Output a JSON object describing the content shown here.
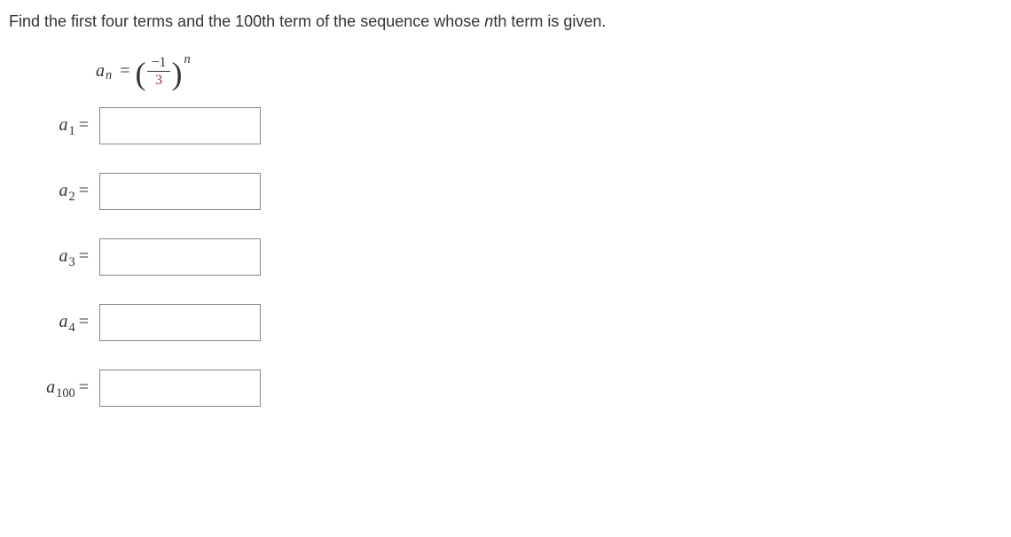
{
  "prompt": {
    "prefix": "Find the first four terms and the 100th term of the sequence whose ",
    "italic": "n",
    "suffix": "th term is given."
  },
  "formula": {
    "symbol": "a",
    "sub": "n",
    "eq": "=",
    "lparen": "(",
    "numerator": "−1",
    "denominator": "3",
    "rparen": ")",
    "exponent": "n"
  },
  "answers": [
    {
      "symbol": "a",
      "index": "1",
      "eq": "=",
      "value": ""
    },
    {
      "symbol": "a",
      "index": "2",
      "eq": "=",
      "value": ""
    },
    {
      "symbol": "a",
      "index": "3",
      "eq": "=",
      "value": ""
    },
    {
      "symbol": "a",
      "index": "4",
      "eq": "=",
      "value": ""
    },
    {
      "symbol": "a",
      "index": "100",
      "eq": "=",
      "value": ""
    }
  ],
  "styling": {
    "text_color": "#333333",
    "denominator_color": "#b1332a",
    "input_border_color": "#868686",
    "background_color": "#ffffff",
    "body_fontsize": 18,
    "math_fontsize": 20,
    "paren_fontsize": 36,
    "input_width": 182,
    "input_height": 42,
    "label_width": 92,
    "row_gap": 32
  }
}
